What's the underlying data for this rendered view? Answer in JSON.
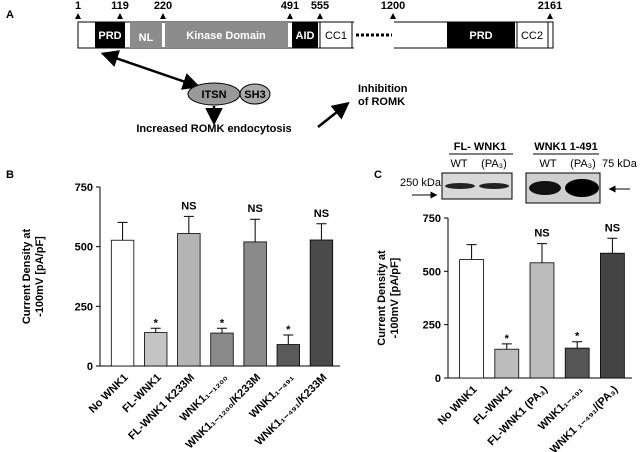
{
  "panel_labels": [
    "A",
    "B",
    "C"
  ],
  "diagram": {
    "positions": [
      1,
      119,
      220,
      491,
      555,
      1200,
      2161
    ],
    "domains": [
      "PRD",
      "NL",
      "Kinase Domain",
      "AID",
      "CC1",
      "PRD",
      "CC2"
    ],
    "itsn": "ITSN",
    "sh3": "SH3",
    "endocytosis": "Increased ROMK endocytosis",
    "inhibition": [
      "Inhibition",
      "of ROMK"
    ]
  },
  "blot": {
    "groups": [
      "FL- WNK1",
      "WNK1 1-491"
    ],
    "lanes": [
      "WT",
      "(PA₃)",
      "WT",
      "(PA₃)"
    ],
    "markers": [
      "250 kDa",
      "75 kDa"
    ]
  },
  "chart_data": [
    {
      "type": "bar",
      "ylabel": [
        "Current Density at",
        "-100mV [pA/pF]"
      ],
      "categories": [
        "No WNK1",
        "FL-WNK1",
        "FL-WNK1 K233M",
        "WNK1₁₋₁₂₀₀",
        "WNK1₁₋₁₂₀₀/K233M",
        "WNK1₁₋₄₉₁",
        "WNK1₁₋₄₉₁/K233M"
      ],
      "values": [
        527,
        140,
        555,
        138,
        520,
        90,
        528
      ],
      "errors": [
        75,
        18,
        72,
        20,
        95,
        40,
        68
      ],
      "annotations": [
        null,
        "*",
        "NS",
        "*",
        "NS",
        "*",
        "NS"
      ],
      "colors": [
        "#ffffff",
        "#c4c4c4",
        "#b4b4b4",
        "#8a8a8a",
        "#8a8a8a",
        "#5a5a5a",
        "#4a4a4a"
      ],
      "ylim": [
        0,
        750
      ],
      "yticks": [
        0,
        250,
        500,
        750
      ]
    },
    {
      "type": "bar",
      "ylabel": [
        "Current Density at",
        "-100mV [pA/pF]"
      ],
      "categories": [
        "No WNK1",
        "FL-WNK1",
        "FL-WNK1 (PA₃)",
        "WNK1₁₋₄₉₁",
        "WNK1 ₁₋₄₉₁/(PA₃)"
      ],
      "values": [
        555,
        135,
        540,
        140,
        585
      ],
      "errors": [
        70,
        25,
        90,
        30,
        70
      ],
      "annotations": [
        null,
        "*",
        "NS",
        "*",
        "NS"
      ],
      "colors": [
        "#ffffff",
        "#bcbcbc",
        "#bcbcbc",
        "#555555",
        "#444444"
      ],
      "ylim": [
        0,
        750
      ],
      "yticks": [
        0,
        250,
        500,
        750
      ]
    }
  ]
}
